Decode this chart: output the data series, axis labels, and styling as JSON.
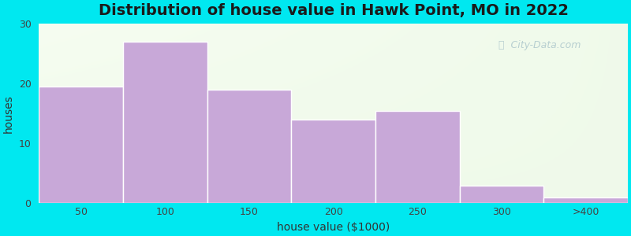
{
  "title": "Distribution of house value in Hawk Point, MO in 2022",
  "xlabel": "house value ($1000)",
  "ylabel": "houses",
  "categories": [
    "50",
    "100",
    "150",
    "200",
    "250",
    "300",
    ">400"
  ],
  "values": [
    19.5,
    27.0,
    19.0,
    14.0,
    15.5,
    3.0,
    1.0
  ],
  "bar_color": "#c8a8d8",
  "bar_edgecolor": "white",
  "ylim": [
    0,
    30
  ],
  "yticks": [
    0,
    10,
    20,
    30
  ],
  "background_outer": "#00e8f0",
  "title_fontsize": 14,
  "axis_label_fontsize": 10,
  "tick_fontsize": 9,
  "watermark_text": "City-Data.com",
  "watermark_color": "#aec8cc",
  "bar_width": 1.0
}
